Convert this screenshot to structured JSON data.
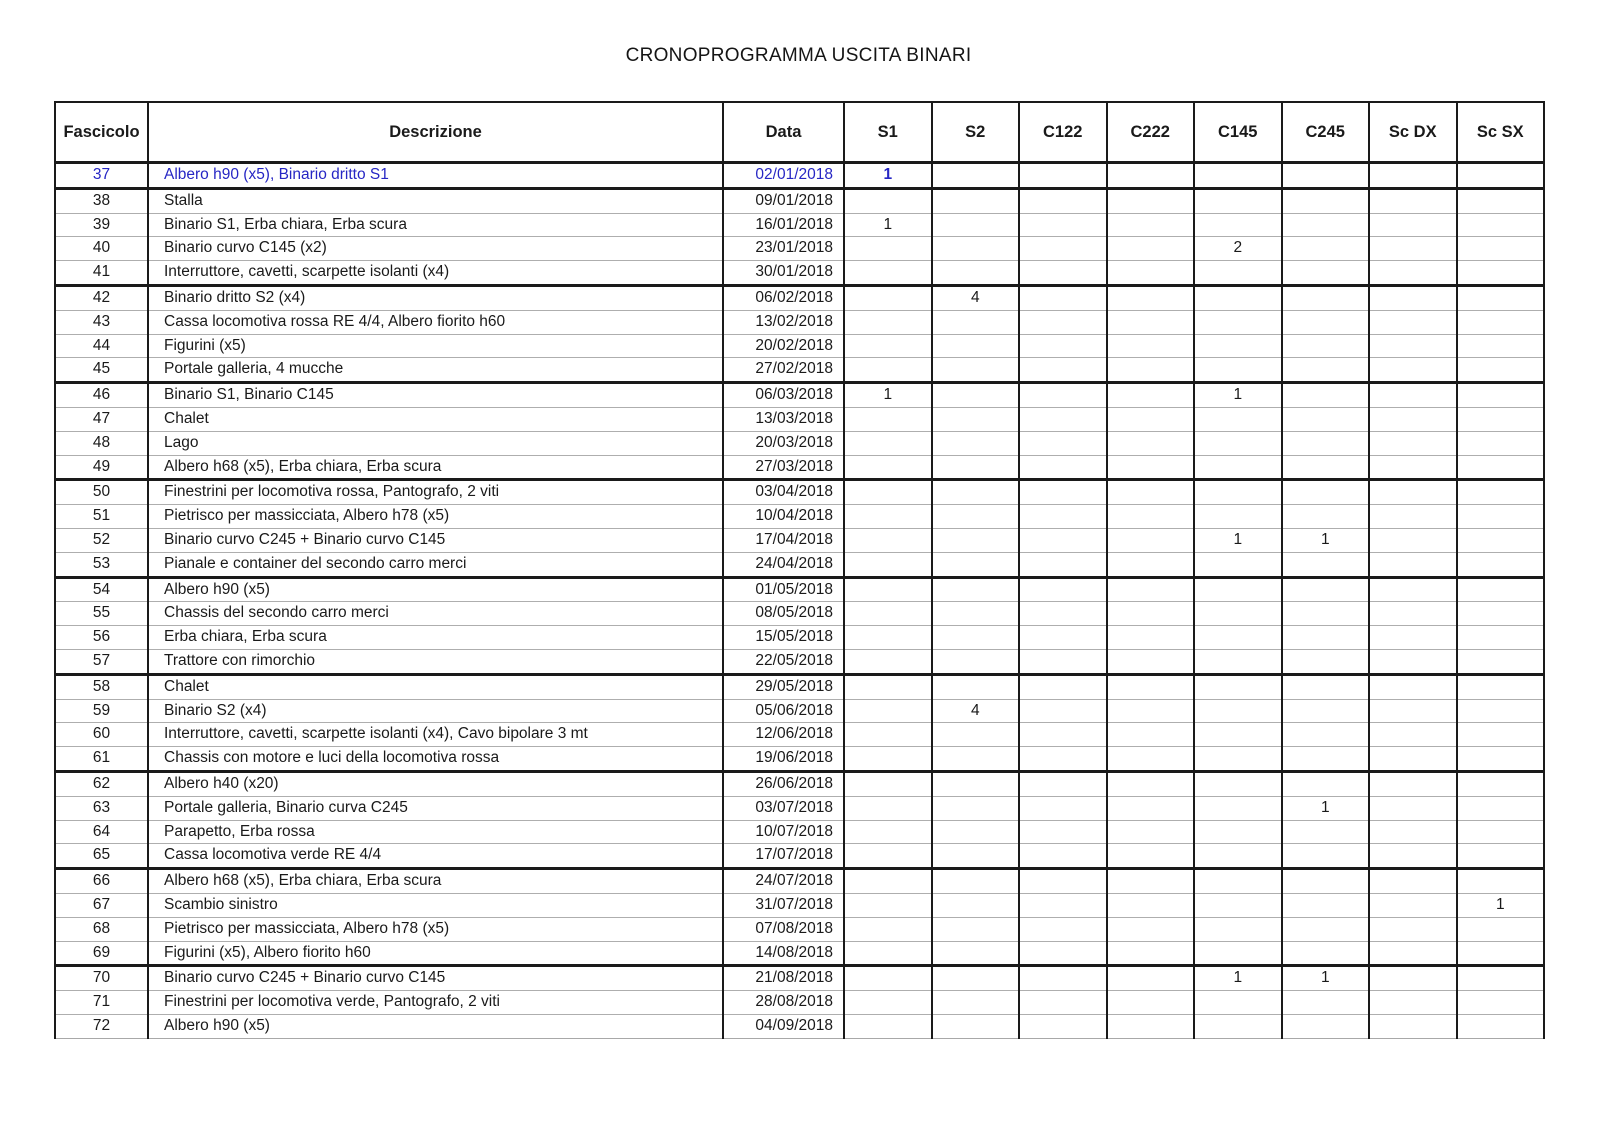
{
  "title": "CRONOPROGRAMMA USCITA BINARI",
  "accent_color": "#2626c4",
  "table": {
    "columns": [
      "Fascicolo",
      "Descrizione",
      "Data",
      "S1",
      "S2",
      "C122",
      "C222",
      "C145",
      "C245",
      "Sc DX",
      "Sc SX"
    ],
    "qty_columns": [
      "S1",
      "S2",
      "C122",
      "C222",
      "C145",
      "C245",
      "Sc DX",
      "Sc SX"
    ],
    "rows": [
      {
        "fascicolo": "37",
        "descrizione": "Albero h90 (x5), Binario dritto S1",
        "data": "02/01/2018",
        "qty": {
          "S1": "1"
        },
        "highlight": true,
        "group_end": true
      },
      {
        "fascicolo": "38",
        "descrizione": "Stalla",
        "data": "09/01/2018",
        "qty": {}
      },
      {
        "fascicolo": "39",
        "descrizione": "Binario S1, Erba chiara, Erba scura",
        "data": "16/01/2018",
        "qty": {
          "S1": "1"
        }
      },
      {
        "fascicolo": "40",
        "descrizione": "Binario curvo C145 (x2)",
        "data": "23/01/2018",
        "qty": {
          "C145": "2"
        }
      },
      {
        "fascicolo": "41",
        "descrizione": "Interruttore, cavetti, scarpette isolanti (x4)",
        "data": "30/01/2018",
        "qty": {},
        "group_end": true
      },
      {
        "fascicolo": "42",
        "descrizione": "Binario dritto S2 (x4)",
        "data": "06/02/2018",
        "qty": {
          "S2": "4"
        }
      },
      {
        "fascicolo": "43",
        "descrizione": "Cassa locomotiva rossa RE 4/4, Albero fiorito h60",
        "data": "13/02/2018",
        "qty": {}
      },
      {
        "fascicolo": "44",
        "descrizione": "Figurini (x5)",
        "data": "20/02/2018",
        "qty": {}
      },
      {
        "fascicolo": "45",
        "descrizione": "Portale galleria, 4 mucche",
        "data": "27/02/2018",
        "qty": {},
        "group_end": true
      },
      {
        "fascicolo": "46",
        "descrizione": "Binario S1, Binario C145",
        "data": "06/03/2018",
        "qty": {
          "S1": "1",
          "C145": "1"
        }
      },
      {
        "fascicolo": "47",
        "descrizione": "Chalet",
        "data": "13/03/2018",
        "qty": {}
      },
      {
        "fascicolo": "48",
        "descrizione": "Lago",
        "data": "20/03/2018",
        "qty": {}
      },
      {
        "fascicolo": "49",
        "descrizione": "Albero h68 (x5), Erba chiara, Erba scura",
        "data": "27/03/2018",
        "qty": {},
        "group_end": true
      },
      {
        "fascicolo": "50",
        "descrizione": "Finestrini per locomotiva rossa, Pantografo, 2 viti",
        "data": "03/04/2018",
        "qty": {}
      },
      {
        "fascicolo": "51",
        "descrizione": "Pietrisco per massicciata, Albero h78 (x5)",
        "data": "10/04/2018",
        "qty": {}
      },
      {
        "fascicolo": "52",
        "descrizione": "Binario curvo C245 + Binario curvo C145",
        "data": "17/04/2018",
        "qty": {
          "C145": "1",
          "C245": "1"
        }
      },
      {
        "fascicolo": "53",
        "descrizione": "Pianale e container del secondo carro merci",
        "data": "24/04/2018",
        "qty": {},
        "group_end": true
      },
      {
        "fascicolo": "54",
        "descrizione": "Albero h90 (x5)",
        "data": "01/05/2018",
        "qty": {}
      },
      {
        "fascicolo": "55",
        "descrizione": "Chassis del secondo carro merci",
        "data": "08/05/2018",
        "qty": {}
      },
      {
        "fascicolo": "56",
        "descrizione": "Erba chiara, Erba scura",
        "data": "15/05/2018",
        "qty": {}
      },
      {
        "fascicolo": "57",
        "descrizione": "Trattore con rimorchio",
        "data": "22/05/2018",
        "qty": {},
        "group_end": true
      },
      {
        "fascicolo": "58",
        "descrizione": "Chalet",
        "data": "29/05/2018",
        "qty": {}
      },
      {
        "fascicolo": "59",
        "descrizione": "Binario S2 (x4)",
        "data": "05/06/2018",
        "qty": {
          "S2": "4"
        }
      },
      {
        "fascicolo": "60",
        "descrizione": "Interruttore, cavetti, scarpette isolanti (x4), Cavo bipolare 3 mt",
        "data": "12/06/2018",
        "qty": {}
      },
      {
        "fascicolo": "61",
        "descrizione": "Chassis con motore e luci della locomotiva rossa",
        "data": "19/06/2018",
        "qty": {},
        "group_end": true
      },
      {
        "fascicolo": "62",
        "descrizione": "Albero h40 (x20)",
        "data": "26/06/2018",
        "qty": {}
      },
      {
        "fascicolo": "63",
        "descrizione": "Portale galleria, Binario curva C245",
        "data": "03/07/2018",
        "qty": {
          "C245": "1"
        }
      },
      {
        "fascicolo": "64",
        "descrizione": "Parapetto, Erba rossa",
        "data": "10/07/2018",
        "qty": {}
      },
      {
        "fascicolo": "65",
        "descrizione": "Cassa locomotiva verde RE 4/4",
        "data": "17/07/2018",
        "qty": {},
        "group_end": true
      },
      {
        "fascicolo": "66",
        "descrizione": "Albero h68 (x5), Erba chiara, Erba scura",
        "data": "24/07/2018",
        "qty": {}
      },
      {
        "fascicolo": "67",
        "descrizione": "Scambio sinistro",
        "data": "31/07/2018",
        "qty": {
          "Sc SX": "1"
        }
      },
      {
        "fascicolo": "68",
        "descrizione": "Pietrisco per massicciata, Albero h78 (x5)",
        "data": "07/08/2018",
        "qty": {}
      },
      {
        "fascicolo": "69",
        "descrizione": "Figurini (x5), Albero fiorito h60",
        "data": "14/08/2018",
        "qty": {},
        "group_end": true
      },
      {
        "fascicolo": "70",
        "descrizione": "Binario curvo C245 + Binario curvo C145",
        "data": "21/08/2018",
        "qty": {
          "C145": "1",
          "C245": "1"
        }
      },
      {
        "fascicolo": "71",
        "descrizione": "Finestrini per locomotiva verde, Pantografo, 2 viti",
        "data": "28/08/2018",
        "qty": {}
      },
      {
        "fascicolo": "72",
        "descrizione": "Albero h90 (x5)",
        "data": "04/09/2018",
        "qty": {}
      }
    ]
  }
}
